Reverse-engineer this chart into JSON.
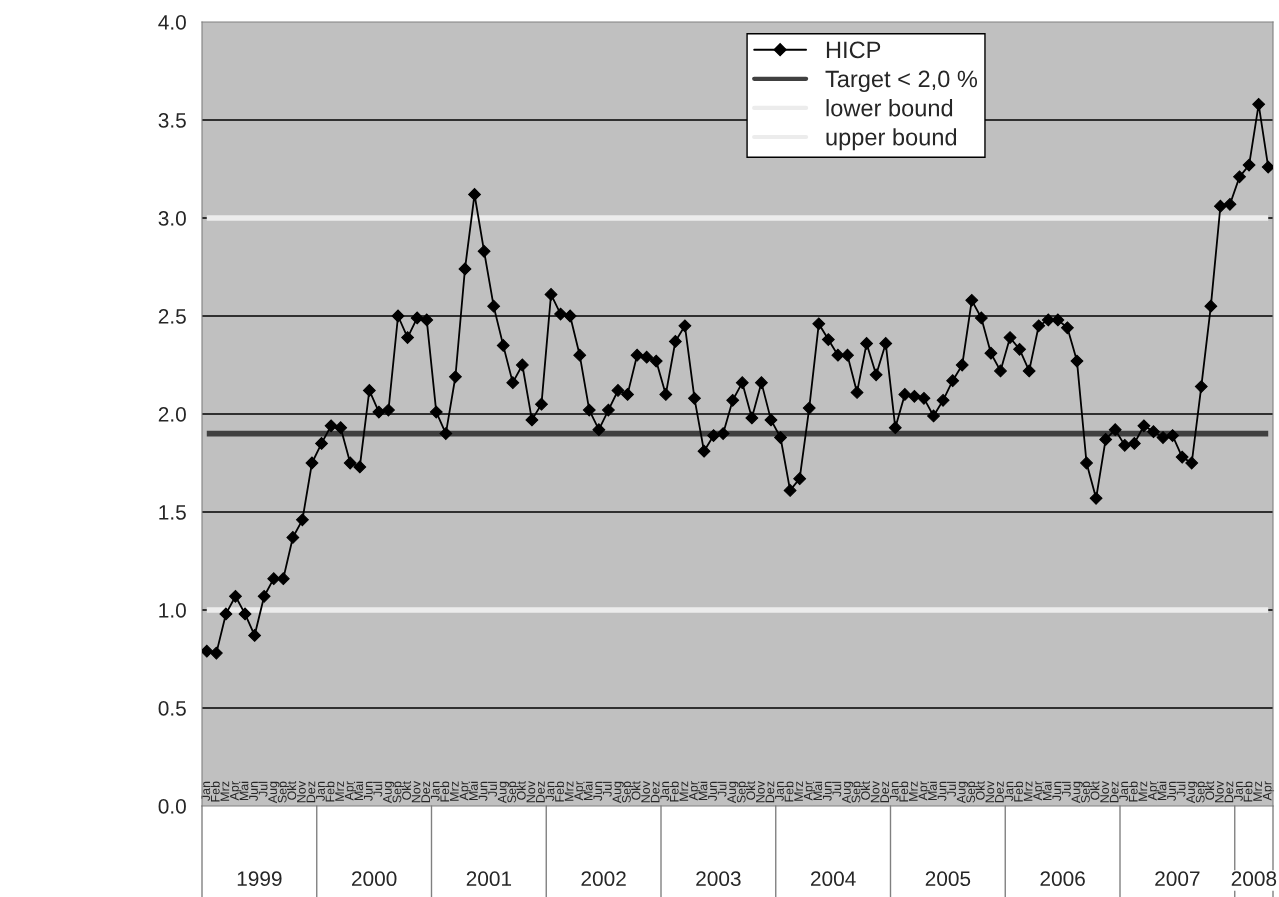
{
  "chart_data": {
    "type": "line",
    "categories": [
      "Jan",
      "Feb",
      "Mrz",
      "Apr",
      "Mai",
      "Jun",
      "Jul",
      "Aug",
      "Sep",
      "Okt",
      "Nov",
      "Dez",
      "Jan",
      "Feb",
      "Mrz",
      "Apr",
      "Mai",
      "Jun",
      "Jul",
      "Aug",
      "Sep",
      "Okt",
      "Nov",
      "Dez",
      "Jan",
      "Feb",
      "Mrz",
      "Apr",
      "Mai",
      "Jun",
      "Jul",
      "Aug",
      "Sep",
      "Okt",
      "Nov",
      "Dez",
      "Jan",
      "Feb",
      "Mrz",
      "Apr",
      "Mai",
      "Jun",
      "Jul",
      "Aug",
      "Sep",
      "Okt",
      "Nov",
      "Dez",
      "Jan",
      "Feb",
      "Mrz",
      "Apr",
      "Mai",
      "Jun",
      "Jul",
      "Aug",
      "Sep",
      "Okt",
      "Nov",
      "Dez",
      "Jan",
      "Feb",
      "Mrz",
      "Apr",
      "Mai",
      "Jun",
      "Jul",
      "Aug",
      "Sep",
      "Okt",
      "Nov",
      "Dez",
      "Jan",
      "Feb",
      "Mrz",
      "Apr",
      "Mai",
      "Jun",
      "Jul",
      "Aug",
      "Sep",
      "Okt",
      "Nov",
      "Dez",
      "Jan",
      "Feb",
      "Mrz",
      "Apr",
      "Mai",
      "Jun",
      "Jul",
      "Aug",
      "Sep",
      "Okt",
      "Nov",
      "Dez",
      "Jan",
      "Feb",
      "Mrz",
      "Apr",
      "Mai",
      "Jun",
      "Jul",
      "Aug",
      "Sep",
      "Okt",
      "Nov",
      "Dez",
      "Jan",
      "Feb",
      "Mrz",
      "Apr"
    ],
    "series": [
      {
        "name": "HICP",
        "color": "#000000",
        "marker": "diamond",
        "values": [
          0.79,
          0.78,
          0.98,
          1.07,
          0.98,
          0.87,
          1.07,
          1.16,
          1.16,
          1.37,
          1.46,
          1.75,
          1.85,
          1.94,
          1.93,
          1.75,
          1.73,
          2.12,
          2.01,
          2.02,
          2.5,
          2.39,
          2.49,
          2.48,
          2.01,
          1.9,
          2.19,
          2.74,
          3.12,
          2.83,
          2.55,
          2.35,
          2.16,
          2.25,
          1.97,
          2.05,
          2.61,
          2.51,
          2.5,
          2.3,
          2.02,
          1.92,
          2.02,
          2.12,
          2.1,
          2.3,
          2.29,
          2.27,
          2.1,
          2.37,
          2.45,
          2.08,
          1.81,
          1.89,
          1.9,
          2.07,
          2.16,
          1.98,
          2.16,
          1.97,
          1.88,
          1.61,
          1.67,
          2.03,
          2.46,
          2.38,
          2.3,
          2.3,
          2.11,
          2.36,
          2.2,
          2.36,
          1.93,
          2.1,
          2.09,
          2.08,
          1.99,
          2.07,
          2.17,
          2.25,
          2.58,
          2.49,
          2.31,
          2.22,
          2.39,
          2.33,
          2.22,
          2.45,
          2.48,
          2.48,
          2.44,
          2.27,
          1.75,
          1.57,
          1.87,
          1.92,
          1.84,
          1.85,
          1.94,
          1.91,
          1.88,
          1.89,
          1.78,
          1.75,
          2.14,
          2.55,
          3.06,
          3.07,
          3.21,
          3.27,
          3.58,
          3.26
        ]
      },
      {
        "name": "Target < 2,0 %",
        "color": "#404040",
        "marker": "none",
        "values": [
          1.9,
          1.9,
          1.9,
          1.9,
          1.9,
          1.9,
          1.9,
          1.9,
          1.9,
          1.9,
          1.9,
          1.9,
          1.9,
          1.9,
          1.9,
          1.9,
          1.9,
          1.9,
          1.9,
          1.9,
          1.9,
          1.9,
          1.9,
          1.9,
          1.9,
          1.9,
          1.9,
          1.9,
          1.9,
          1.9,
          1.9,
          1.9,
          1.9,
          1.9,
          1.9,
          1.9,
          1.9,
          1.9,
          1.9,
          1.9,
          1.9,
          1.9,
          1.9,
          1.9,
          1.9,
          1.9,
          1.9,
          1.9,
          1.9,
          1.9,
          1.9,
          1.9,
          1.9,
          1.9,
          1.9,
          1.9,
          1.9,
          1.9,
          1.9,
          1.9,
          1.9,
          1.9,
          1.9,
          1.9,
          1.9,
          1.9,
          1.9,
          1.9,
          1.9,
          1.9,
          1.9,
          1.9,
          1.9,
          1.9,
          1.9,
          1.9,
          1.9,
          1.9,
          1.9,
          1.9,
          1.9,
          1.9,
          1.9,
          1.9,
          1.9,
          1.9,
          1.9,
          1.9,
          1.9,
          1.9,
          1.9,
          1.9,
          1.9,
          1.9,
          1.9,
          1.9,
          1.9,
          1.9,
          1.9,
          1.9,
          1.9,
          1.9,
          1.9,
          1.9,
          1.9,
          1.9,
          1.9,
          1.9,
          1.9,
          1.9,
          1.9,
          1.9
        ]
      },
      {
        "name": "lower bound",
        "color": "#ececec",
        "marker": "none",
        "values": [
          1,
          1,
          1,
          1,
          1,
          1,
          1,
          1,
          1,
          1,
          1,
          1,
          1,
          1,
          1,
          1,
          1,
          1,
          1,
          1,
          1,
          1,
          1,
          1,
          1,
          1,
          1,
          1,
          1,
          1,
          1,
          1,
          1,
          1,
          1,
          1,
          1,
          1,
          1,
          1,
          1,
          1,
          1,
          1,
          1,
          1,
          1,
          1,
          1,
          1,
          1,
          1,
          1,
          1,
          1,
          1,
          1,
          1,
          1,
          1,
          1,
          1,
          1,
          1,
          1,
          1,
          1,
          1,
          1,
          1,
          1,
          1,
          1,
          1,
          1,
          1,
          1,
          1,
          1,
          1,
          1,
          1,
          1,
          1,
          1,
          1,
          1,
          1,
          1,
          1,
          1,
          1,
          1,
          1,
          1,
          1,
          1,
          1,
          1,
          1,
          1,
          1,
          1,
          1,
          1,
          1,
          1,
          1,
          1,
          1,
          1,
          1
        ]
      },
      {
        "name": "upper bound",
        "color": "#ececec",
        "marker": "none",
        "values": [
          3,
          3,
          3,
          3,
          3,
          3,
          3,
          3,
          3,
          3,
          3,
          3,
          3,
          3,
          3,
          3,
          3,
          3,
          3,
          3,
          3,
          3,
          3,
          3,
          3,
          3,
          3,
          3,
          3,
          3,
          3,
          3,
          3,
          3,
          3,
          3,
          3,
          3,
          3,
          3,
          3,
          3,
          3,
          3,
          3,
          3,
          3,
          3,
          3,
          3,
          3,
          3,
          3,
          3,
          3,
          3,
          3,
          3,
          3,
          3,
          3,
          3,
          3,
          3,
          3,
          3,
          3,
          3,
          3,
          3,
          3,
          3,
          3,
          3,
          3,
          3,
          3,
          3,
          3,
          3,
          3,
          3,
          3,
          3,
          3,
          3,
          3,
          3,
          3,
          3,
          3,
          3,
          3,
          3,
          3,
          3,
          3,
          3,
          3,
          3,
          3,
          3,
          3,
          3,
          3,
          3,
          3,
          3,
          3,
          3,
          3,
          3
        ]
      }
    ],
    "annotations": [
      "1999",
      "2000",
      "2001",
      "2002",
      "2003",
      "2004",
      "2005",
      "2006",
      "2007",
      "2008"
    ],
    "ylim": [
      0,
      4
    ],
    "yticks": [
      {
        "value": 0,
        "label": "0.0"
      },
      {
        "value": 0.5,
        "label": "0.5"
      },
      {
        "value": 1,
        "label": "1.0"
      },
      {
        "value": 1.5,
        "label": "1.5"
      },
      {
        "value": 2,
        "label": "2.0"
      },
      {
        "value": 2.5,
        "label": "2.5"
      },
      {
        "value": 3,
        "label": "3.0"
      },
      {
        "value": 3.5,
        "label": "3.5"
      },
      {
        "value": 4,
        "label": "4.0"
      }
    ],
    "grid": "y",
    "legend": "top"
  }
}
